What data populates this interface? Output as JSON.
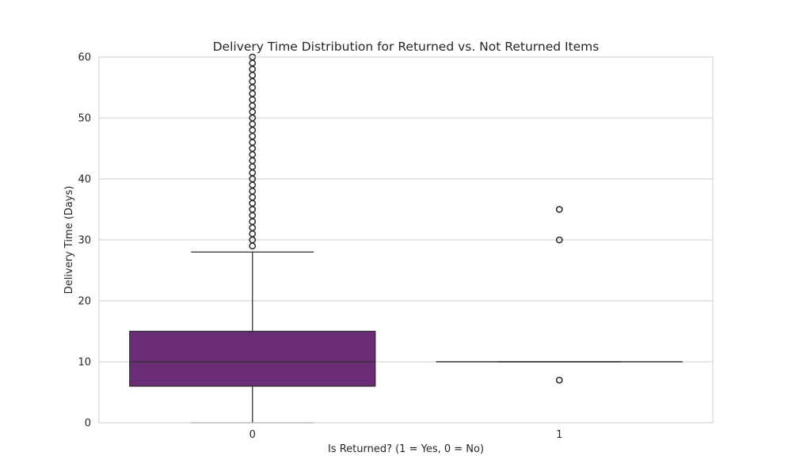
{
  "chart_data": {
    "type": "box",
    "title": "Delivery Time Distribution for Returned vs. Not Returned Items",
    "xlabel": "Is Returned? (1 = Yes, 0 = No)",
    "ylabel": "Delivery Time (Days)",
    "ylim": [
      0,
      60
    ],
    "yticks": [
      0,
      10,
      20,
      30,
      40,
      50,
      60
    ],
    "categories": [
      "0",
      "1"
    ],
    "grid": "horizontal",
    "colors": {
      "box": "#6a2c75",
      "line": "#303030",
      "grid": "#cccccc",
      "frame": "#cccccc"
    },
    "boxes": [
      {
        "category": "0",
        "whisker_low": 0,
        "q1": 6,
        "median": 10,
        "q3": 15,
        "whisker_high": 28,
        "outliers": [
          29,
          30,
          31,
          32,
          33,
          34,
          35,
          36,
          37,
          38,
          39,
          40,
          41,
          42,
          43,
          44,
          45,
          46,
          47,
          48,
          49,
          50,
          51,
          52,
          53,
          54,
          55,
          56,
          57,
          58,
          59,
          60
        ]
      },
      {
        "category": "1",
        "whisker_low": 10,
        "q1": 10,
        "median": 10,
        "q3": 10,
        "whisker_high": 10,
        "outliers": [
          7,
          30,
          35
        ]
      }
    ]
  }
}
